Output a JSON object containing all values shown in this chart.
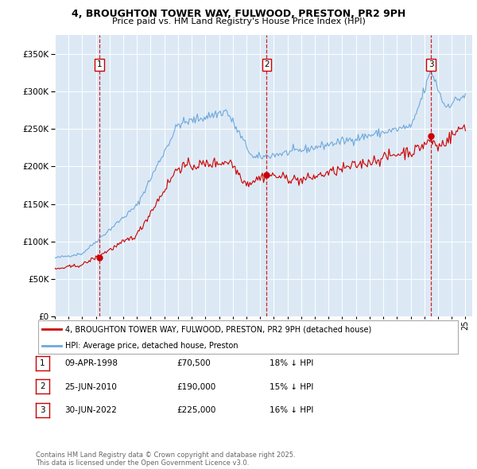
{
  "title1": "4, BROUGHTON TOWER WAY, FULWOOD, PRESTON, PR2 9PH",
  "title2": "Price paid vs. HM Land Registry's House Price Index (HPI)",
  "ytick_vals": [
    0,
    50000,
    100000,
    150000,
    200000,
    250000,
    300000,
    350000
  ],
  "ylim": [
    0,
    375000
  ],
  "xlim_start": 1995.0,
  "xlim_end": 2025.5,
  "background_color": "#dce9f5",
  "grid_color": "#ffffff",
  "legend_label_red": "4, BROUGHTON TOWER WAY, FULWOOD, PRESTON, PR2 9PH (detached house)",
  "legend_label_blue": "HPI: Average price, detached house, Preston",
  "transactions": [
    {
      "num": 1,
      "date": "09-APR-1998",
      "price": 70500,
      "pct": "18%",
      "year": 1998.27
    },
    {
      "num": 2,
      "date": "25-JUN-2010",
      "price": 190000,
      "pct": "15%",
      "year": 2010.48
    },
    {
      "num": 3,
      "date": "30-JUN-2022",
      "price": 225000,
      "pct": "16%",
      "year": 2022.49
    }
  ],
  "footer": "Contains HM Land Registry data © Crown copyright and database right 2025.\nThis data is licensed under the Open Government Licence v3.0.",
  "hpi_color": "#6fa8dc",
  "price_color": "#cc0000"
}
